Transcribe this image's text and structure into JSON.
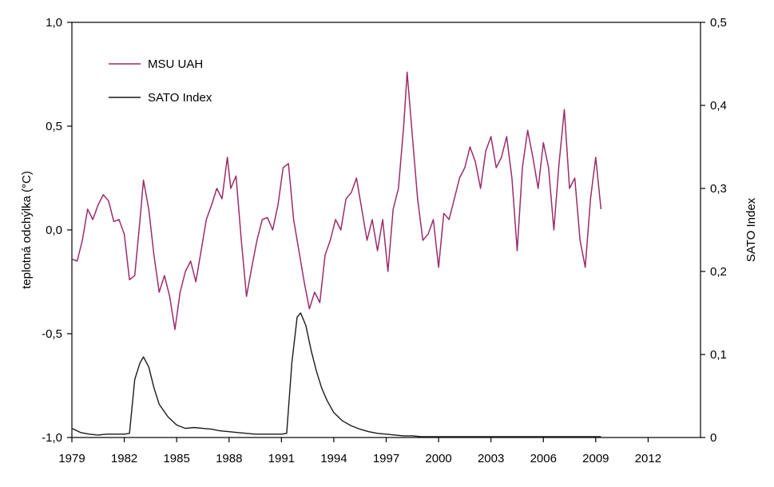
{
  "chart_data": {
    "type": "line",
    "title": "",
    "xlabel": "",
    "ylabel_left": "teplotná odchýlka (°C)",
    "ylabel_right": "SATO Index",
    "xlim": [
      1979,
      2015
    ],
    "ylim_left": [
      -1.0,
      1.0
    ],
    "ylim_right": [
      0,
      0.5
    ],
    "x_ticks": [
      "1979",
      "1982",
      "1985",
      "1988",
      "1991",
      "1994",
      "1997",
      "2000",
      "2003",
      "2006",
      "2009",
      "2012"
    ],
    "y_left_ticks": [
      "1,0",
      "0,5",
      "0,0",
      "-0,5",
      "-1,0"
    ],
    "y_right_ticks": [
      "0,5",
      "0,4",
      "0,3",
      "0,2",
      "0,1",
      "0"
    ],
    "grid": false,
    "legend": "top-left",
    "series": [
      {
        "name": "MSU UAH",
        "axis": "left",
        "color": "#9b2c6a",
        "x": [
          1979.0,
          1979.3,
          1979.6,
          1979.9,
          1980.2,
          1980.5,
          1980.8,
          1981.1,
          1981.4,
          1981.7,
          1982.0,
          1982.3,
          1982.6,
          1982.9,
          1983.1,
          1983.4,
          1983.7,
          1984.0,
          1984.3,
          1984.6,
          1984.9,
          1985.2,
          1985.5,
          1985.8,
          1986.1,
          1986.4,
          1986.7,
          1987.0,
          1987.3,
          1987.6,
          1987.9,
          1988.1,
          1988.4,
          1988.7,
          1989.0,
          1989.3,
          1989.6,
          1989.9,
          1990.2,
          1990.5,
          1990.8,
          1991.1,
          1991.4,
          1991.7,
          1992.0,
          1992.3,
          1992.6,
          1992.9,
          1993.2,
          1993.5,
          1993.8,
          1994.1,
          1994.4,
          1994.7,
          1995.0,
          1995.3,
          1995.6,
          1995.9,
          1996.2,
          1996.5,
          1996.8,
          1997.1,
          1997.4,
          1997.7,
          1998.0,
          1998.2,
          1998.5,
          1998.8,
          1999.1,
          1999.4,
          1999.7,
          2000.0,
          2000.3,
          2000.6,
          2000.9,
          2001.2,
          2001.5,
          2001.8,
          2002.1,
          2002.4,
          2002.7,
          2003.0,
          2003.3,
          2003.6,
          2003.9,
          2004.2,
          2004.5,
          2004.8,
          2005.1,
          2005.4,
          2005.7,
          2006.0,
          2006.3,
          2006.6,
          2006.9,
          2007.2,
          2007.5,
          2007.8,
          2008.1,
          2008.4,
          2008.7,
          2009.0,
          2009.3
        ],
        "y": [
          -0.14,
          -0.15,
          -0.05,
          0.1,
          0.05,
          0.12,
          0.17,
          0.14,
          0.04,
          0.05,
          -0.02,
          -0.24,
          -0.22,
          0.05,
          0.24,
          0.1,
          -0.12,
          -0.3,
          -0.22,
          -0.32,
          -0.48,
          -0.3,
          -0.2,
          -0.15,
          -0.25,
          -0.1,
          0.05,
          0.12,
          0.2,
          0.15,
          0.35,
          0.2,
          0.26,
          -0.05,
          -0.32,
          -0.18,
          -0.05,
          0.05,
          0.06,
          0.0,
          0.12,
          0.3,
          0.32,
          0.05,
          -0.1,
          -0.25,
          -0.38,
          -0.3,
          -0.35,
          -0.12,
          -0.05,
          0.05,
          0.0,
          0.15,
          0.18,
          0.25,
          0.1,
          -0.05,
          0.05,
          -0.1,
          0.05,
          -0.2,
          0.1,
          0.2,
          0.5,
          0.76,
          0.45,
          0.15,
          -0.05,
          -0.02,
          0.05,
          -0.18,
          0.08,
          0.05,
          0.15,
          0.25,
          0.3,
          0.4,
          0.33,
          0.2,
          0.38,
          0.45,
          0.3,
          0.35,
          0.45,
          0.25,
          -0.1,
          0.3,
          0.48,
          0.35,
          0.2,
          0.42,
          0.3,
          0.0,
          0.32,
          0.58,
          0.2,
          0.25,
          -0.05,
          -0.18,
          0.15,
          0.35,
          0.1
        ]
      },
      {
        "name": "SATO Index",
        "axis": "right",
        "color": "#1a1a1a",
        "x": [
          1979.0,
          1979.5,
          1980.0,
          1980.5,
          1981.0,
          1981.5,
          1982.0,
          1982.3,
          1982.6,
          1982.9,
          1983.1,
          1983.4,
          1983.7,
          1984.0,
          1984.5,
          1985.0,
          1985.5,
          1986.0,
          1986.5,
          1987.0,
          1987.5,
          1988.0,
          1988.5,
          1989.0,
          1989.5,
          1990.0,
          1990.5,
          1991.0,
          1991.3,
          1991.6,
          1991.9,
          1992.1,
          1992.4,
          1992.7,
          1993.0,
          1993.3,
          1993.6,
          1994.0,
          1994.5,
          1995.0,
          1995.5,
          1996.0,
          1996.5,
          1997.0,
          1997.5,
          1998.0,
          1998.5,
          1999.0,
          2000.0,
          2001.0,
          2002.0,
          2003.0,
          2004.0,
          2005.0,
          2006.0,
          2007.0,
          2008.0,
          2009.0,
          2009.3
        ],
        "y": [
          0.011,
          0.006,
          0.004,
          0.003,
          0.004,
          0.004,
          0.004,
          0.005,
          0.07,
          0.09,
          0.097,
          0.085,
          0.06,
          0.04,
          0.025,
          0.015,
          0.011,
          0.012,
          0.011,
          0.01,
          0.008,
          0.007,
          0.006,
          0.005,
          0.004,
          0.004,
          0.004,
          0.004,
          0.005,
          0.09,
          0.145,
          0.15,
          0.135,
          0.105,
          0.08,
          0.06,
          0.045,
          0.03,
          0.02,
          0.014,
          0.01,
          0.007,
          0.005,
          0.004,
          0.003,
          0.002,
          0.002,
          0.001,
          0.001,
          0.001,
          0.001,
          0.001,
          0.001,
          0.001,
          0.001,
          0.001,
          0.001,
          0.001,
          0.001
        ]
      }
    ]
  }
}
